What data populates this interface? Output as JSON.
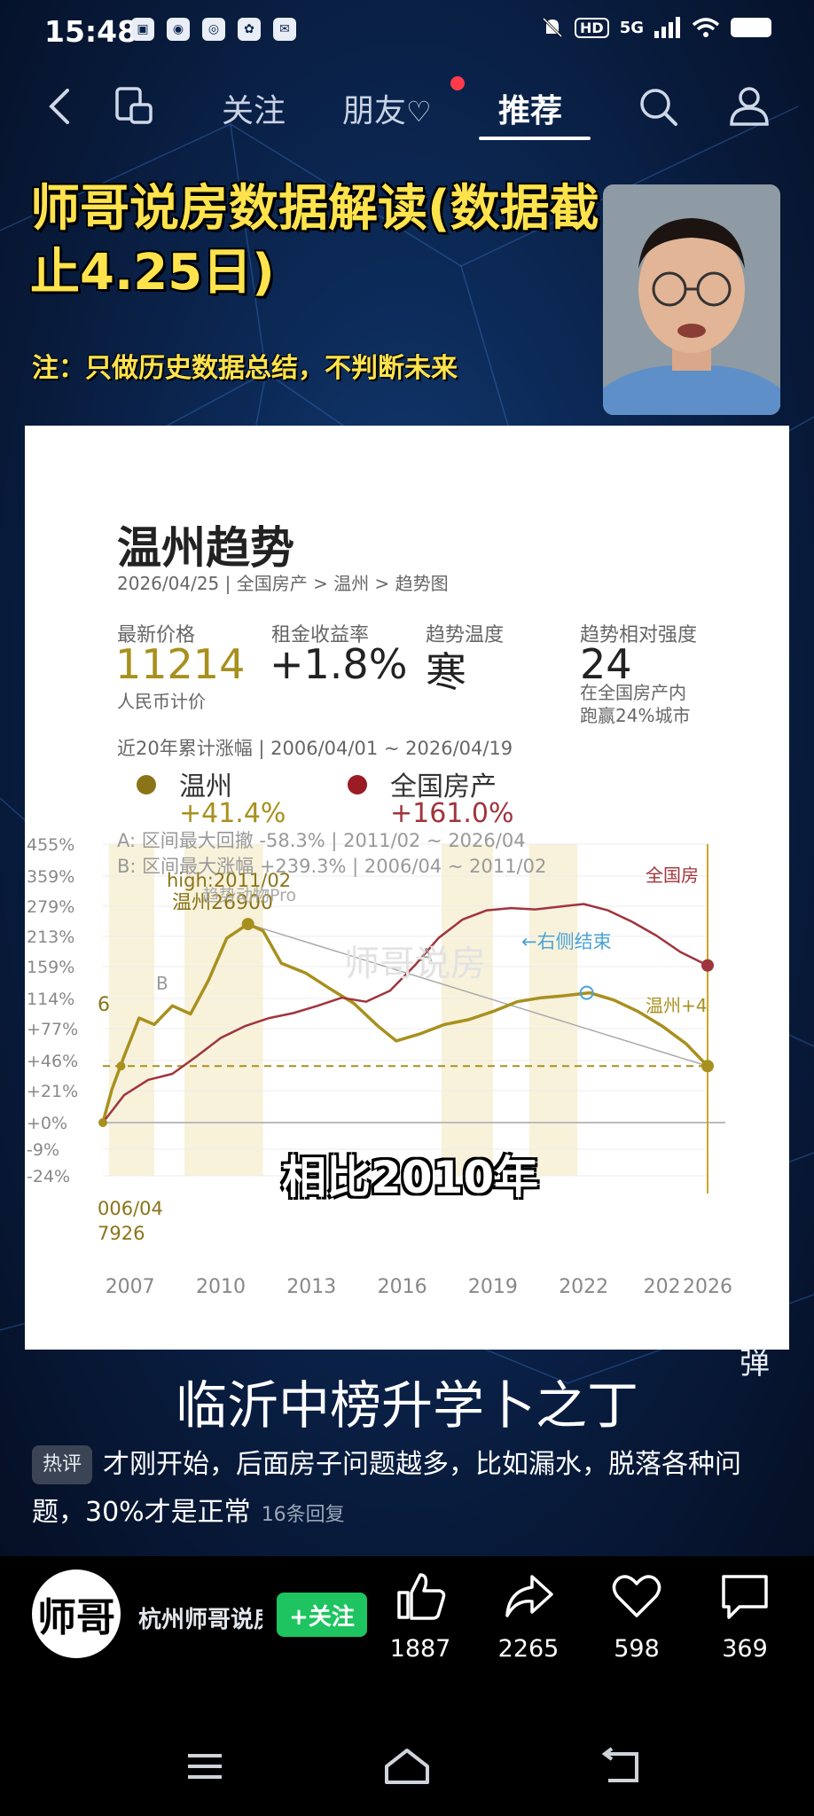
{
  "status_bar": {
    "time": "15:48",
    "hd": "HD",
    "net": "5G",
    "app_icons": [
      "bili-icon",
      "wechat-icon",
      "browser-icon",
      "baidu-icon",
      "mail-icon"
    ]
  },
  "nav": {
    "tabs": [
      "关注",
      "朋友",
      "推荐"
    ],
    "active": "推荐"
  },
  "video": {
    "title": "师哥说房数据解读(数据截止4.25日)",
    "note": "注：只做历史数据总结，不判断未来",
    "caption": "相比2010年",
    "subtitle": "临沂中榜升学卜之丁",
    "danmu_label": "弹"
  },
  "card": {
    "title": "温州趋势",
    "breadcrumb": "2026/04/25 | 全国房产 > 温州 > 趋势图",
    "stats": [
      {
        "label": "最新价格",
        "value": "11214",
        "note": "人民币计价"
      },
      {
        "label": "租金收益率",
        "value": "+1.8%",
        "note": ""
      },
      {
        "label": "趋势温度",
        "value": "寒",
        "note": ""
      },
      {
        "label": "趋势相对强度",
        "value": "24",
        "note": "在全国房产内\n跑赢24%城市"
      }
    ],
    "range_label": "近20年累计涨幅 | 2006/04/01 ~ 2026/04/19",
    "legend": [
      {
        "name": "温州",
        "value": "+41.4%",
        "color": "#8a7418"
      },
      {
        "name": "全国房产",
        "value": "+161.0%",
        "color": "#9b1c24"
      }
    ]
  },
  "chart_data": {
    "type": "line",
    "yticks": [
      "455%",
      "359%",
      "279%",
      "213%",
      "159%",
      "114%",
      "+77%",
      "+46%",
      "+21%",
      "+0%",
      "-9%",
      "-24%"
    ],
    "xticks": [
      "2007",
      "2010",
      "2013",
      "2016",
      "2019",
      "2022",
      "202",
      "2026"
    ],
    "annotations": [
      "A: 区间最大回撤 -58.3% | 2011/02 ~ 2026/04",
      "B: 区间最大涨幅 +239.3% | 2006/04 ~ 2011/02",
      "high:2011/02",
      "温州26900",
      "趋势动物Pro",
      "6",
      "B",
      "A",
      "006/04",
      "7926",
      "←右侧结束",
      "全国房",
      "温州+4",
      "师哥说房"
    ],
    "series": [
      {
        "name": "温州",
        "color": "#a8901e",
        "x": [
          2006.3,
          2006.6,
          2007.0,
          2007.5,
          2008.0,
          2008.6,
          2009.2,
          2009.8,
          2010.4,
          2011.1,
          2011.6,
          2012.2,
          2013.0,
          2013.8,
          2014.6,
          2015.4,
          2016.0,
          2016.8,
          2017.6,
          2018.4,
          2019.2,
          2020.0,
          2020.8,
          2021.6,
          2022.4,
          2023.2,
          2024.0,
          2024.8,
          2025.6,
          2026.3
        ],
        "y": [
          0,
          22,
          50,
          90,
          82,
          105,
          95,
          140,
          210,
          240,
          225,
          165,
          150,
          128,
          108,
          80,
          65,
          72,
          82,
          88,
          98,
          110,
          115,
          118,
          122,
          112,
          98,
          80,
          62,
          41.4
        ]
      },
      {
        "name": "全国房产",
        "color": "#a0343c",
        "x": [
          2006.3,
          2007.0,
          2007.8,
          2008.6,
          2009.4,
          2010.2,
          2011.0,
          2011.8,
          2012.6,
          2013.4,
          2014.2,
          2015.0,
          2015.8,
          2016.6,
          2017.4,
          2018.2,
          2019.0,
          2019.8,
          2020.6,
          2021.4,
          2022.2,
          2023.0,
          2023.8,
          2024.6,
          2025.4,
          2026.3
        ],
        "y": [
          0,
          18,
          30,
          35,
          50,
          68,
          80,
          90,
          96,
          105,
          115,
          110,
          125,
          160,
          210,
          250,
          270,
          275,
          272,
          278,
          285,
          270,
          245,
          215,
          185,
          161
        ]
      }
    ]
  },
  "comment": {
    "badge": "热评",
    "text": "才刚开始，后面房子问题越多，比如漏水，脱落各种问题，30%才是正常",
    "replies": "16条回复"
  },
  "author": {
    "avatar_text": "师哥",
    "name": "杭州师哥说房",
    "follow": "+关注"
  },
  "actions": [
    {
      "name": "like",
      "count": "1887"
    },
    {
      "name": "share",
      "count": "2265"
    },
    {
      "name": "favorite",
      "count": "598"
    },
    {
      "name": "comment",
      "count": "369"
    }
  ]
}
